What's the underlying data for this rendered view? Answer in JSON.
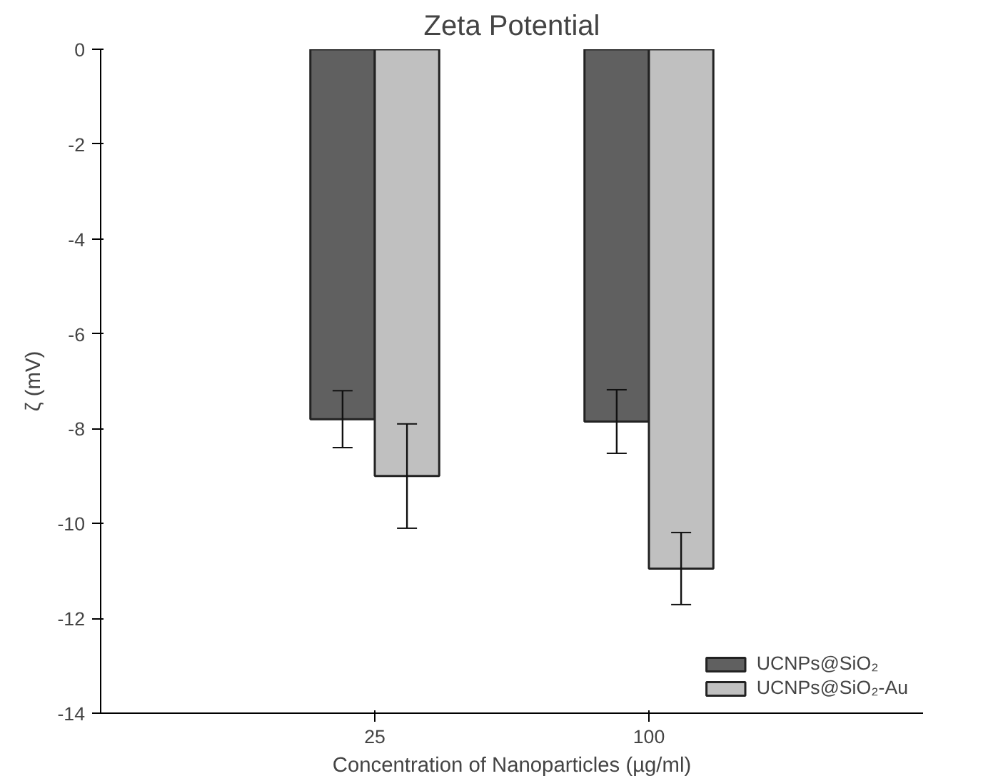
{
  "chart_data": {
    "type": "bar",
    "title": "Zeta Potential",
    "xlabel": "Concentration of Nanoparticles (µg/ml)",
    "ylabel": "ζ (mV)",
    "categories": [
      "25",
      "100"
    ],
    "series": [
      {
        "name": "UCNPs@SiO₂",
        "color": "#606060",
        "values": [
          -7.8,
          -7.85
        ],
        "errors": [
          0.6,
          0.67
        ]
      },
      {
        "name": "UCNPs@SiO₂-Au",
        "color": "#c0c0c0",
        "values": [
          -9.0,
          -10.95
        ],
        "errors": [
          1.1,
          0.76
        ]
      }
    ],
    "ylim": [
      -14,
      0
    ],
    "yticks": [
      -14,
      -12,
      -10,
      -8,
      -6,
      -4,
      -2,
      0
    ],
    "grid": false,
    "legend": "bottom right"
  }
}
